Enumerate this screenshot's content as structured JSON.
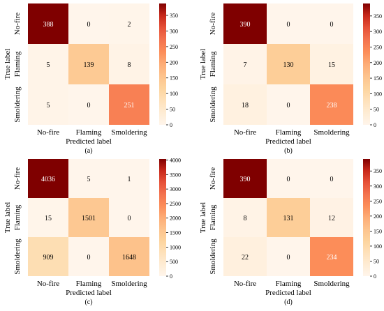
{
  "chart_data": [
    {
      "type": "heatmap",
      "caption": "(a)",
      "xlabel": "Predicted label",
      "ylabel": "True label",
      "x_categories": [
        "No-fire",
        "Flaming",
        "Smoldering"
      ],
      "y_categories": [
        "No-fire",
        "Flaming",
        "Smoldering"
      ],
      "values": [
        [
          388,
          0,
          2
        ],
        [
          5,
          139,
          8
        ],
        [
          5,
          0,
          251
        ]
      ],
      "colorbar": {
        "min": 0,
        "max": 388,
        "ticks": [
          0,
          50,
          100,
          150,
          200,
          250,
          300,
          350
        ]
      }
    },
    {
      "type": "heatmap",
      "caption": "(b)",
      "xlabel": "Predicted label",
      "ylabel": "True label",
      "x_categories": [
        "No-fire",
        "Flaming",
        "Smoldering"
      ],
      "y_categories": [
        "No-fire",
        "Flaming",
        "Smoldering"
      ],
      "values": [
        [
          390,
          0,
          0
        ],
        [
          7,
          130,
          15
        ],
        [
          18,
          0,
          238
        ]
      ],
      "colorbar": {
        "min": 0,
        "max": 390,
        "ticks": [
          0,
          50,
          100,
          150,
          200,
          250,
          300,
          350
        ]
      }
    },
    {
      "type": "heatmap",
      "caption": "(c)",
      "xlabel": "Predicted label",
      "ylabel": "True label",
      "x_categories": [
        "No-fire",
        "Flaming",
        "Smoldering"
      ],
      "y_categories": [
        "No-fire",
        "Flaming",
        "Smoldering"
      ],
      "values": [
        [
          4036,
          5,
          1
        ],
        [
          15,
          1501,
          0
        ],
        [
          909,
          0,
          1648
        ]
      ],
      "colorbar": {
        "min": 0,
        "max": 4036,
        "ticks": [
          0,
          500,
          1000,
          1500,
          2000,
          2500,
          3000,
          3500,
          4000
        ]
      }
    },
    {
      "type": "heatmap",
      "caption": "(d)",
      "xlabel": "Predicted label",
      "ylabel": "True label",
      "x_categories": [
        "No-fire",
        "Flaming",
        "Smoldering"
      ],
      "y_categories": [
        "No-fire",
        "Flaming",
        "Smoldering"
      ],
      "values": [
        [
          390,
          0,
          0
        ],
        [
          8,
          131,
          12
        ],
        [
          22,
          0,
          234
        ]
      ],
      "colorbar": {
        "min": 0,
        "max": 390,
        "ticks": [
          0,
          50,
          100,
          150,
          200,
          250,
          300,
          350
        ]
      }
    }
  ],
  "colors": {
    "low": "#fff5eb",
    "mid": "#fd8d3c",
    "high": "#7f0000"
  }
}
